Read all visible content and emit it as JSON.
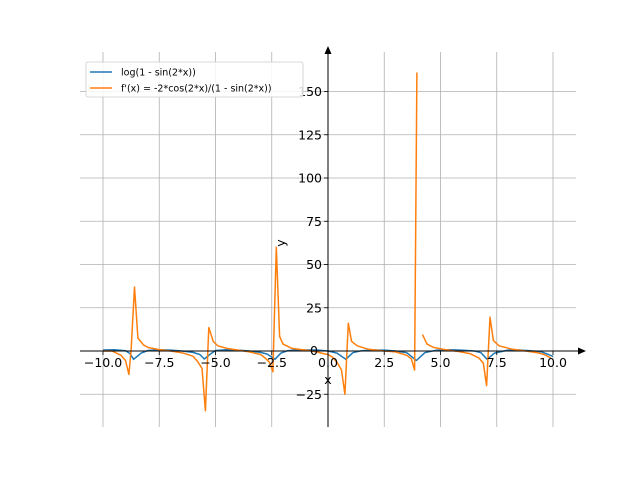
{
  "chart_data": {
    "type": "line",
    "xlabel": "x",
    "ylabel": "y",
    "xlim": [
      -11,
      11
    ],
    "ylim": [
      -45,
      175
    ],
    "grid": true,
    "legend_placement": "top-left",
    "x_ticks": [
      -10.0,
      -7.5,
      -5.0,
      -2.5,
      0.0,
      2.5,
      5.0,
      7.5,
      10.0
    ],
    "x_tick_labels": [
      "−10.0",
      "−7.5",
      "−5.0",
      "−2.5",
      "0.0",
      "2.5",
      "5.0",
      "7.5",
      "10.0"
    ],
    "y_ticks": [
      -25,
      25,
      50,
      75,
      100,
      125,
      150
    ],
    "y_tick_labels": [
      "−25",
      "25",
      "50",
      "75",
      "100",
      "125",
      "150"
    ],
    "origin_y_label": "0",
    "series": [
      {
        "name": "log(1 - sin(2*x))",
        "color": "#1f77b4",
        "x": [
          -10.0,
          -9.5,
          -9.0,
          -8.8,
          -8.64,
          -8.3,
          -8.0,
          -7.5,
          -7.0,
          -6.5,
          -6.0,
          -5.7,
          -5.5,
          -5.2,
          -5.0,
          -4.5,
          -4.0,
          -3.5,
          -3.0,
          -2.7,
          -2.36,
          -2.1,
          -1.8,
          -1.5,
          -1.0,
          -0.5,
          0.0,
          0.4,
          0.79,
          1.1,
          1.5,
          2.0,
          2.5,
          3.0,
          3.5,
          3.93,
          4.3,
          4.8,
          5.5,
          6.0,
          6.5,
          6.8,
          7.07,
          7.4,
          8.0,
          8.5,
          9.0,
          9.5,
          9.8,
          10.0
        ],
        "y": [
          0.6,
          0.7,
          0.2,
          -1.5,
          -4.8,
          -1.2,
          0.3,
          0.7,
          0.5,
          0.0,
          -0.8,
          -2.0,
          -4.6,
          -1.5,
          0.3,
          0.7,
          0.5,
          0.0,
          -0.8,
          -1.8,
          -4.8,
          -1.3,
          0.2,
          0.6,
          0.6,
          0.6,
          0.0,
          -1.2,
          -4.8,
          -1.0,
          0.2,
          0.6,
          0.5,
          0.0,
          -1.0,
          -5.5,
          -1.0,
          0.4,
          0.7,
          0.4,
          0.0,
          -1.0,
          -4.8,
          -1.2,
          0.5,
          0.6,
          0.2,
          -0.5,
          -2.0,
          -3.2
        ]
      },
      {
        "name": "f'(x) = -2*cos(2*x)/(1 - sin(2*x))",
        "color": "#ff7f0e",
        "segments": [
          {
            "x": [
              -10.0,
              -9.6,
              -9.2,
              -9.0,
              -8.85,
              -8.75,
              -8.6,
              -8.45,
              -8.2,
              -8.0,
              -7.5,
              -7.0,
              -6.5,
              -6.0,
              -5.8,
              -5.6,
              -5.45,
              -5.3,
              -5.1,
              -4.9,
              -4.5,
              -4.0,
              -3.5,
              -3.0,
              -2.8,
              -2.6,
              -2.45,
              -2.3,
              -2.15,
              -2.0,
              -1.6,
              -1.0,
              -0.5,
              -0.2,
              0.0,
              0.2,
              0.4,
              0.6,
              0.75,
              0.9,
              1.05,
              1.3,
              1.8,
              2.5,
              3.0,
              3.5,
              3.7,
              3.85,
              3.95
            ],
            "y": [
              0,
              0,
              -2.5,
              -5.5,
              -13.5,
              0.5,
              37.0,
              7.5,
              3.5,
              2.0,
              0.8,
              0.0,
              -1.0,
              -3.0,
              -6.0,
              -10.0,
              -34.5,
              13.5,
              5.5,
              3.0,
              1.5,
              0.5,
              -0.5,
              -2.0,
              -4.0,
              -6.5,
              -12.0,
              60.0,
              8.5,
              4.0,
              1.5,
              0.5,
              -0.5,
              -1.5,
              -2.0,
              -3.5,
              -6.5,
              -11.0,
              -25.0,
              16.0,
              5.5,
              3.0,
              1.0,
              0.0,
              -0.5,
              -2.5,
              -4.5,
              -11.0,
              161.0
            ]
          },
          {
            "x": [
              4.2,
              4.4,
              4.7,
              5.2,
              5.8,
              6.3,
              6.7,
              6.9,
              7.05,
              7.2,
              7.35,
              7.6,
              8.2,
              8.8,
              9.3,
              9.6,
              9.9
            ],
            "y": [
              9.5,
              4.0,
              2.0,
              0.8,
              -0.3,
              -1.5,
              -4.0,
              -7.0,
              -20.0,
              19.5,
              6.0,
              3.0,
              1.0,
              0.0,
              -1.0,
              -2.0,
              -4.0
            ]
          }
        ]
      }
    ]
  }
}
